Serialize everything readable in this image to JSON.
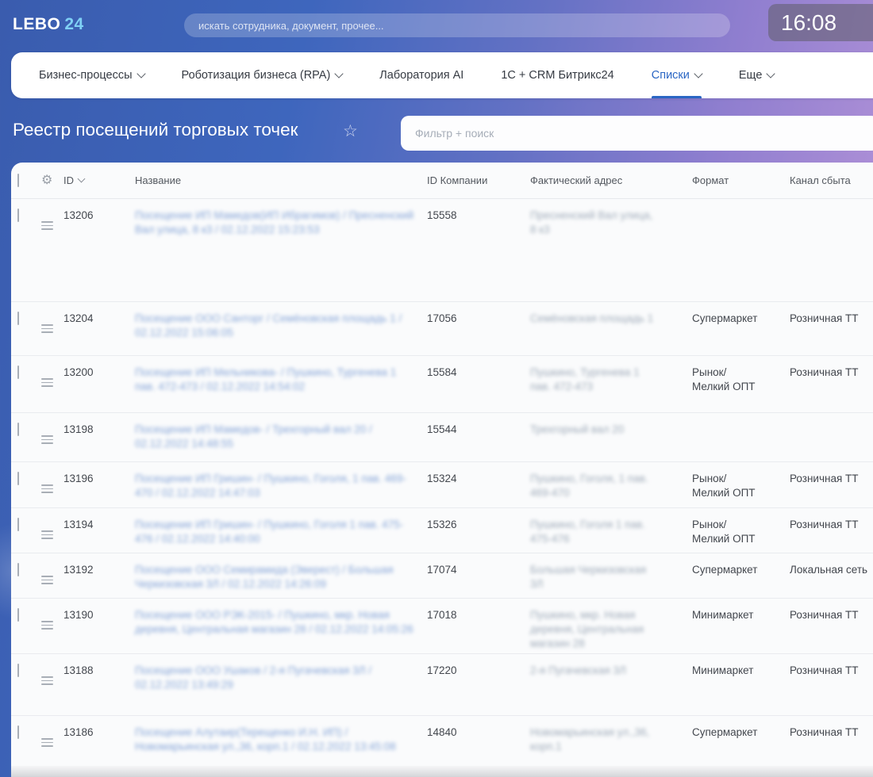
{
  "topbar": {
    "logo": {
      "text": "LEBO",
      "accent": "24"
    },
    "search_placeholder": "искать сотрудника, документ, прочее...",
    "clock": "16:08"
  },
  "nav": {
    "items": [
      {
        "label": "Бизнес-процессы",
        "chevron": true,
        "active": false
      },
      {
        "label": "Роботизация бизнеса (RPA)",
        "chevron": true,
        "active": false
      },
      {
        "label": "Лаборатория AI",
        "chevron": false,
        "active": false
      },
      {
        "label": "1С + CRM Битрикс24",
        "chevron": false,
        "active": false
      },
      {
        "label": "Списки",
        "chevron": true,
        "active": true
      },
      {
        "label": "Еще",
        "chevron": true,
        "active": false
      }
    ]
  },
  "page": {
    "title": "Реестр посещений торговых точек",
    "star_icon": "star-outline",
    "filter_placeholder": "Фильтр + поиск"
  },
  "table": {
    "columns": {
      "id": "ID",
      "name": "Название",
      "company_id": "ID Компании",
      "address": "Фактический адрес",
      "format": "Формат",
      "channel": "Канал сбыта"
    },
    "rows": [
      {
        "id": "13206",
        "name": "Посещение ИП Мамедов(ИП Ибрагимов) / Пресненский Вал улица, 8 к3 / 02.12.2022 15:23:53",
        "company_id": "15558",
        "address": "Пресненский Вал улица,\n8 к3",
        "format": "",
        "channel": ""
      },
      {
        "id": "13204",
        "name": "Посещение ООО Санторг / Семёновская площадь 1 / 02.12.2022 15:06:05",
        "company_id": "17056",
        "address": "Семёновская площадь 1",
        "format": "Супермаркет",
        "channel": "Розничная ТТ"
      },
      {
        "id": "13200",
        "name": "Посещение ИП Мельникова- / Пушкино, Тургенева 1 пав. 472-473 / 02.12.2022 14:54:02",
        "company_id": "15584",
        "address": "Пушкино, Тургенева 1\nпав. 472-473",
        "format": "Рынок/\nМелкий ОПТ",
        "channel": "Розничная ТТ"
      },
      {
        "id": "13198",
        "name": "Посещение ИП Мамедов- / Трехгорный вал 20 / 02.12.2022 14:48:55",
        "company_id": "15544",
        "address": "Трехгорный вал 20",
        "format": "",
        "channel": ""
      },
      {
        "id": "13196",
        "name": "Посещение ИП Гришин- / Пушкино, Гоголя, 1 пав. 469-470 / 02.12.2022 14:47:03",
        "company_id": "15324",
        "address": "Пушкино, Гоголя, 1 пав.\n469-470",
        "format": "Рынок/\nМелкий ОПТ",
        "channel": "Розничная ТТ"
      },
      {
        "id": "13194",
        "name": "Посещение ИП Гришин- / Пушкино, Гоголя 1 пав. 475-476 / 02.12.2022 14:40:00",
        "company_id": "15326",
        "address": "Пушкино, Гоголя 1 пав.\n475-476",
        "format": "Рынок/\nМелкий ОПТ",
        "channel": "Розничная ТТ"
      },
      {
        "id": "13192",
        "name": "Посещение ООО Семирамида (Эверест) / Большая Черкизовская 3Л / 02.12.2022 14:26:09",
        "company_id": "17074",
        "address": "Большая Черкизовская\n3Л",
        "format": "Супермаркет",
        "channel": "Локальная сеть"
      },
      {
        "id": "13190",
        "name": "Посещение ООО РЭК-2015- / Пушкино, мкр. Новая деревня, Центральная магазин 28 / 02.12.2022 14:05:26",
        "company_id": "17018",
        "address": "Пушкино, мкр. Новая\nдеревня, Центральная\nмагазин 28",
        "format": "Минимаркет",
        "channel": "Розничная ТТ"
      },
      {
        "id": "13188",
        "name": "Посещение ООО Ушаков / 2-я Пугачевская 3Л / 02.12.2022 13:49:29",
        "company_id": "17220",
        "address": "2-я Пугачевская 3Л",
        "format": "Минимаркет",
        "channel": "Розничная ТТ"
      },
      {
        "id": "13186",
        "name": "Посещение Алутаир(Терещенко И.Н. ИП) / Новомарьинская ул.,36, корп.1 / 02.12.2022 13:45:08",
        "company_id": "14840",
        "address": "Новомарьинская ул.,36,\nкорп.1",
        "format": "Супермаркет",
        "channel": "Розничная ТТ"
      }
    ]
  },
  "colors": {
    "accent_blue": "#2a66c4",
    "link_blue": "#86a5d7",
    "gradient_start": "#3a5cae",
    "gradient_end": "#b795da"
  }
}
